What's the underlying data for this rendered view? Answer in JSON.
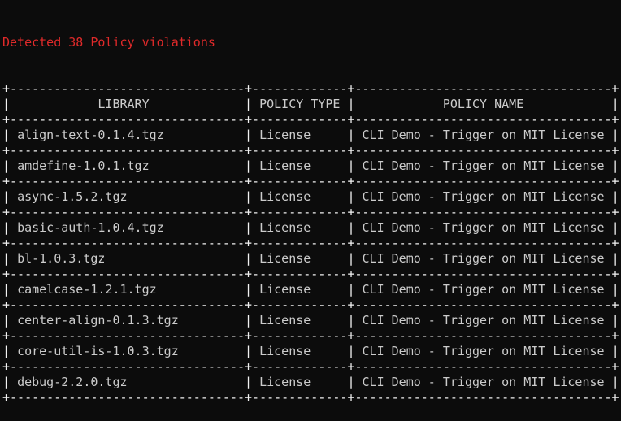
{
  "title": "Detected 38 Policy violations",
  "colors": {
    "title": "#e02a2a",
    "text": "#cccccc",
    "background": "#0c0c0c"
  },
  "table": {
    "headers": [
      "LIBRARY",
      "POLICY TYPE",
      "POLICY NAME"
    ],
    "rows": [
      [
        "align-text-0.1.4.tgz",
        "License",
        "CLI Demo - Trigger on MIT License"
      ],
      [
        "amdefine-1.0.1.tgz",
        "License",
        "CLI Demo - Trigger on MIT License"
      ],
      [
        "async-1.5.2.tgz",
        "License",
        "CLI Demo - Trigger on MIT License"
      ],
      [
        "basic-auth-1.0.4.tgz",
        "License",
        "CLI Demo - Trigger on MIT License"
      ],
      [
        "bl-1.0.3.tgz",
        "License",
        "CLI Demo - Trigger on MIT License"
      ],
      [
        "camelcase-1.2.1.tgz",
        "License",
        "CLI Demo - Trigger on MIT License"
      ],
      [
        "center-align-0.1.3.tgz",
        "License",
        "CLI Demo - Trigger on MIT License"
      ],
      [
        "core-util-is-1.0.3.tgz",
        "License",
        "CLI Demo - Trigger on MIT License"
      ],
      [
        "debug-2.2.0.tgz",
        "License",
        "CLI Demo - Trigger on MIT License"
      ]
    ]
  }
}
